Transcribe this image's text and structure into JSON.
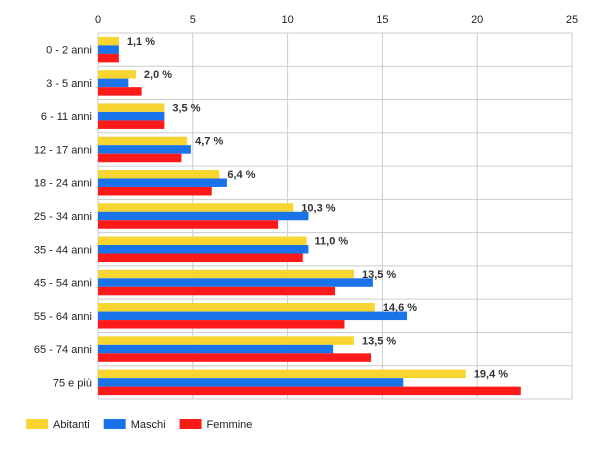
{
  "chart_data": {
    "type": "bar",
    "orientation": "horizontal",
    "categories": [
      "0 - 2 anni",
      "3 - 5 anni",
      "6 - 11 anni",
      "12 - 17 anni",
      "18 - 24 anni",
      "25 - 34 anni",
      "35 - 44 anni",
      "45 - 54 anni",
      "55 - 64 anni",
      "65 - 74 anni",
      "75 e più"
    ],
    "series": [
      {
        "name": "Abitanti",
        "color": "#f9d531",
        "values": [
          1.1,
          2.0,
          3.5,
          4.7,
          6.4,
          10.3,
          11.0,
          13.5,
          14.6,
          13.5,
          19.4
        ]
      },
      {
        "name": "Maschi",
        "color": "#1a73e8",
        "values": [
          1.1,
          1.6,
          3.5,
          4.9,
          6.8,
          11.1,
          11.1,
          14.5,
          16.3,
          12.4,
          16.1
        ]
      },
      {
        "name": "Femmine",
        "color": "#ff1a1a",
        "values": [
          1.1,
          2.3,
          3.5,
          4.4,
          6.0,
          9.5,
          10.8,
          12.5,
          13.0,
          14.4,
          22.3
        ]
      }
    ],
    "data_labels": [
      "1,1 %",
      "2,0 %",
      "3,5 %",
      "4,7 %",
      "6,4 %",
      "10,3 %",
      "11,0 %",
      "13,5 %",
      "14,6 %",
      "13,5 %",
      "19,4 %"
    ],
    "x_ticks": [
      "0",
      "5",
      "10",
      "15",
      "20",
      "25"
    ],
    "xlim": [
      0,
      25
    ],
    "title": "",
    "xlabel": "",
    "ylabel": "",
    "grid": true,
    "legend_position": "bottom-left"
  }
}
